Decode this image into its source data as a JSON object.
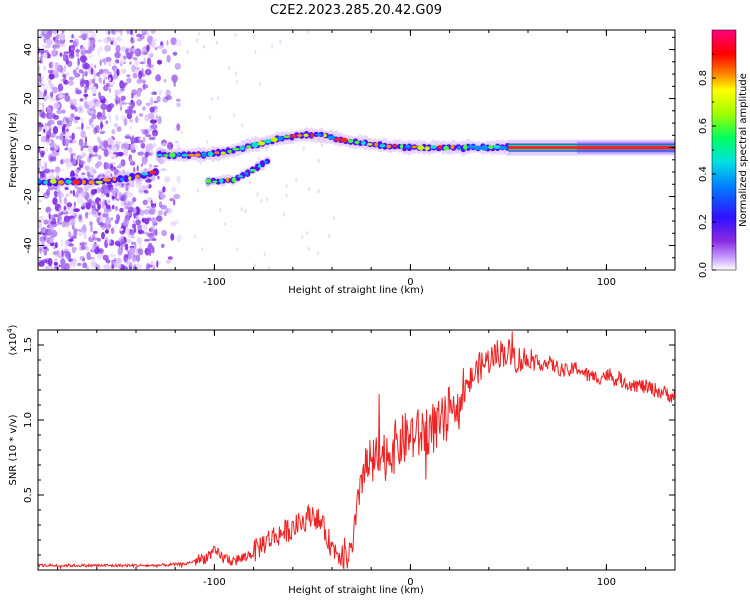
{
  "title": "C2E2.2023.285.20.42.G09",
  "chart_data": [
    {
      "type": "heatmap",
      "xlabel": "Height of straight line (km)",
      "ylabel": "Frequency (Hz)",
      "xlim": [
        -190,
        135
      ],
      "ylim": [
        -50,
        48
      ],
      "xticks": [
        -100,
        0,
        100
      ],
      "yticks": [
        -40,
        -20,
        0,
        20,
        40
      ],
      "colorbar": {
        "label": "Normalized spectral amplitude",
        "range": [
          0,
          1
        ],
        "ticks": [
          "0.0",
          "0.2",
          "0.4",
          "0.6",
          "0.8"
        ],
        "colormap": [
          "#ffffff",
          "#8a2be2",
          "#4000ff",
          "#0050ff",
          "#00e0e0",
          "#00ff60",
          "#a0ff00",
          "#ffff00",
          "#ff8000",
          "#ff0000",
          "#ff0080"
        ]
      },
      "ridges": [
        {
          "x": [
            -128,
            -110,
            -95,
            -85,
            -75,
            -65,
            -55,
            -45,
            -35,
            -25,
            -15,
            0,
            20,
            40,
            60,
            90,
            135
          ],
          "y": [
            -3,
            -3,
            -2,
            0,
            2,
            4,
            5,
            5,
            3,
            2,
            1,
            0,
            0,
            0,
            0,
            0,
            0
          ]
        },
        {
          "x": [
            -190,
            -160,
            -140,
            -130
          ],
          "y": [
            -14,
            -14,
            -12,
            -10
          ]
        },
        {
          "x": [
            -103,
            -90,
            -80,
            -70
          ],
          "y": [
            -14,
            -13,
            -9,
            -4
          ]
        }
      ],
      "grid": false,
      "legend": "right"
    },
    {
      "type": "line",
      "xlabel": "Height of straight line (km)",
      "ylabel": "SNR (10 * v/v)",
      "multiplier": "(x10",
      "multiplier_exp": "4",
      "multiplier_close": ")",
      "xlim": [
        -190,
        135
      ],
      "ylim": [
        0,
        1.6
      ],
      "xticks": [
        -100,
        0,
        100
      ],
      "yticks": [
        "0.5",
        "1.0",
        "1.5"
      ],
      "color": "#ee2222",
      "x": [
        -190,
        -170,
        -150,
        -130,
        -115,
        -105,
        -100,
        -95,
        -90,
        -85,
        -80,
        -75,
        -70,
        -65,
        -60,
        -55,
        -50,
        -45,
        -40,
        -35,
        -30,
        -27,
        -25,
        -20,
        -15,
        -10,
        -5,
        0,
        5,
        10,
        15,
        20,
        25,
        30,
        35,
        40,
        45,
        50,
        55,
        60,
        65,
        70,
        75,
        80,
        85,
        90,
        95,
        100,
        110,
        120,
        130,
        135
      ],
      "y": [
        0.03,
        0.03,
        0.03,
        0.03,
        0.04,
        0.08,
        0.12,
        0.08,
        0.06,
        0.08,
        0.12,
        0.18,
        0.22,
        0.25,
        0.28,
        0.32,
        0.38,
        0.3,
        0.15,
        0.1,
        0.1,
        0.4,
        0.65,
        0.7,
        0.75,
        0.8,
        0.85,
        0.9,
        0.9,
        0.95,
        0.95,
        1.05,
        1.1,
        1.25,
        1.35,
        1.4,
        1.45,
        1.45,
        1.4,
        1.4,
        1.38,
        1.38,
        1.35,
        1.32,
        1.35,
        1.3,
        1.28,
        1.3,
        1.25,
        1.22,
        1.18,
        1.15
      ],
      "grid": false
    }
  ]
}
